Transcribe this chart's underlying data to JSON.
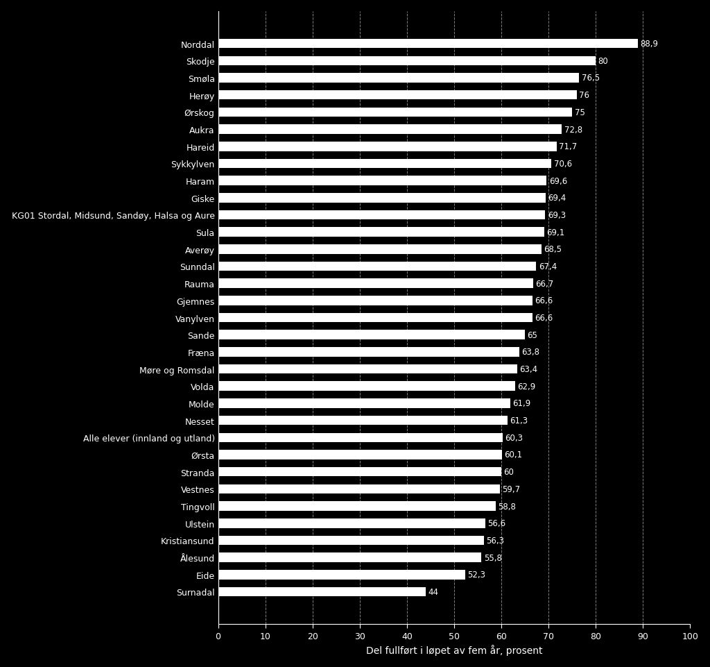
{
  "categories": [
    "Norddal",
    "Skodje",
    "Smøla",
    "Herøy",
    "Ørskog",
    "Aukra",
    "Hareid",
    "Sykkylven",
    "Haram",
    "Giske",
    "KG01 Stordal, Midsund, Sandøy, Halsa og Aure",
    "Sula",
    "Averøy",
    "Sunndal",
    "Rauma",
    "Gjemnes",
    "Vanylven",
    "Sande",
    "Fræna",
    "Møre og Romsdal",
    "Volda",
    "Molde",
    "Nesset",
    "Alle elever (innland og utland)",
    "Ørsta",
    "Stranda",
    "Vestnes",
    "Tingvoll",
    "Ulstein",
    "Kristiansund",
    "Ålesund",
    "Eide",
    "Surnadal"
  ],
  "values": [
    88.9,
    80.0,
    76.5,
    76.0,
    75.0,
    72.8,
    71.7,
    70.6,
    69.6,
    69.4,
    69.3,
    69.1,
    68.5,
    67.4,
    66.7,
    66.6,
    66.6,
    65.0,
    63.8,
    63.4,
    62.9,
    61.9,
    61.3,
    60.3,
    60.1,
    60.0,
    59.7,
    58.8,
    56.6,
    56.3,
    55.8,
    52.3,
    44.0
  ],
  "bar_color": "#ffffff",
  "background_color": "#000000",
  "text_color": "#ffffff",
  "xlabel": "Del fullført i løpet av fem år, prosent",
  "xlim": [
    0,
    100
  ],
  "xticks": [
    0,
    10,
    20,
    30,
    40,
    50,
    60,
    70,
    80,
    90,
    100
  ],
  "grid_color": "#ffffff",
  "value_labels": [
    "88,9",
    "80",
    "76,5",
    "76",
    "75",
    "72,8",
    "71,7",
    "70,6",
    "69,6",
    "69,4",
    "69,3",
    "69,1",
    "68,5",
    "67,4",
    "66,7",
    "66,6",
    "66,6",
    "65",
    "63,8",
    "63,4",
    "62,9",
    "61,9",
    "61,3",
    "60,3",
    "60,1",
    "60",
    "59,7",
    "58,8",
    "56,6",
    "56,3",
    "55,8",
    "52,3",
    "44"
  ]
}
